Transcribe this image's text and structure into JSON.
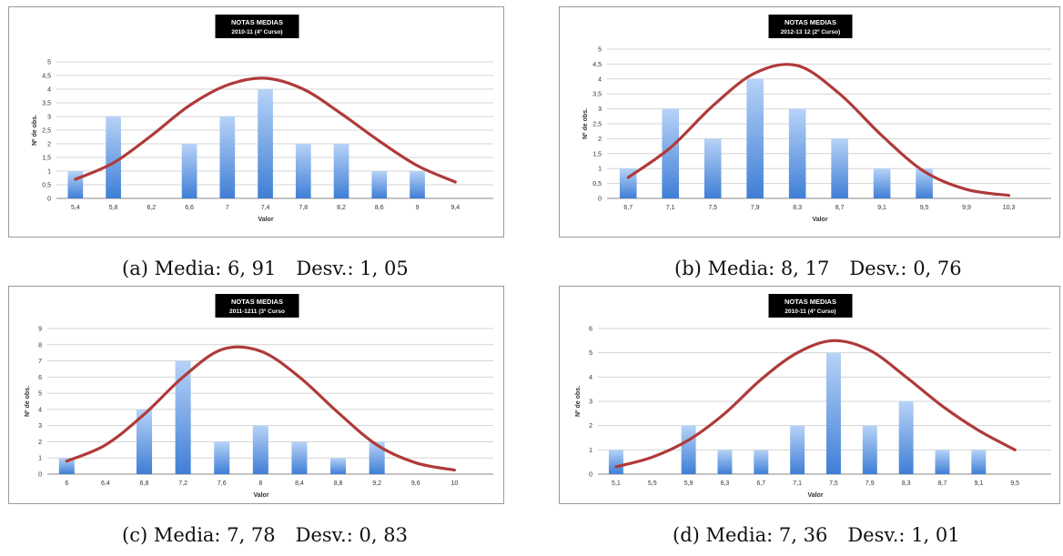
{
  "chart_data": [
    {
      "type": "bar",
      "title": "NOTAS MEDIAS",
      "subtitle": "2010-11 (4º Curso)",
      "xlabel": "Valor",
      "ylabel": "Nº de obs.",
      "ylim": [
        0,
        5
      ],
      "yticks": [
        "0",
        "0,5",
        "1",
        "1,5",
        "2",
        "2,5",
        "3",
        "3,5",
        "4",
        "4,5",
        "5"
      ],
      "categories": [
        "5,4",
        "5,8",
        "6,2",
        "6,6",
        "7",
        "7,4",
        "7,8",
        "8,2",
        "8,6",
        "9",
        "9,4"
      ],
      "values": [
        1,
        3,
        0,
        2,
        3,
        4,
        2,
        2,
        1,
        1,
        0
      ],
      "curve": [
        0.7,
        1.3,
        2.3,
        3.4,
        4.15,
        4.4,
        4.0,
        3.1,
        2.1,
        1.2,
        0.6
      ],
      "grid": true,
      "caption": {
        "label": "(a) Media:",
        "mean": "6, 91",
        "dev_label": "Desv.:",
        "dev": "1, 05"
      }
    },
    {
      "type": "bar",
      "title": "NOTAS MEDIAS",
      "subtitle": "2012-13 12 (2º Curso)",
      "xlabel": "Valor",
      "ylabel": "Nº de obs.",
      "ylim": [
        0,
        5
      ],
      "yticks": [
        "0",
        "0,5",
        "1",
        "1,5",
        "2",
        "2,5",
        "3",
        "3,5",
        "4",
        "4,5",
        "5"
      ],
      "categories": [
        "6,7",
        "7,1",
        "7,5",
        "7,9",
        "8,3",
        "8,7",
        "9,1",
        "9,5",
        "9,9",
        "10,3"
      ],
      "values": [
        1,
        3,
        2,
        4,
        3,
        2,
        1,
        1,
        0,
        0
      ],
      "curve": [
        0.7,
        1.7,
        3.1,
        4.2,
        4.45,
        3.5,
        2.1,
        0.9,
        0.3,
        0.1
      ],
      "grid": true,
      "caption": {
        "label": "(b) Media:",
        "mean": "8, 17",
        "dev_label": "Desv.:",
        "dev": "0, 76"
      }
    },
    {
      "type": "bar",
      "title": "NOTAS MEDIAS",
      "subtitle": "2011-1211 (3º Curso",
      "xlabel": "Valor",
      "ylabel": "Nº de obs.",
      "ylim": [
        0,
        9
      ],
      "yticks": [
        "0",
        "1",
        "2",
        "3",
        "4",
        "5",
        "6",
        "7",
        "8",
        "9"
      ],
      "categories": [
        "6",
        "6,4",
        "6,8",
        "7,2",
        "7,6",
        "8",
        "8,4",
        "8,8",
        "9,2",
        "9,6",
        "10"
      ],
      "values": [
        1,
        0,
        4,
        7,
        2,
        3,
        2,
        1,
        2,
        0,
        0
      ],
      "curve": [
        0.8,
        1.8,
        3.7,
        6.0,
        7.7,
        7.6,
        6.0,
        3.8,
        1.8,
        0.7,
        0.25
      ],
      "grid": true,
      "caption": {
        "label": "(c) Media:",
        "mean": "7, 78",
        "dev_label": "Desv.:",
        "dev": "0, 83"
      }
    },
    {
      "type": "bar",
      "title": "NOTAS MEDIAS",
      "subtitle": "2010-11 (4º Curso)",
      "xlabel": "Valor",
      "ylabel": "Nº de obs.",
      "ylim": [
        0,
        6
      ],
      "yticks": [
        "0",
        "1",
        "2",
        "3",
        "4",
        "5",
        "6"
      ],
      "categories": [
        "5,1",
        "5,5",
        "5,9",
        "6,3",
        "6,7",
        "7,1",
        "7,5",
        "7,9",
        "8,3",
        "8,7",
        "9,1",
        "9,5"
      ],
      "values": [
        1,
        0,
        2,
        1,
        1,
        2,
        5,
        2,
        3,
        1,
        1,
        0
      ],
      "curve": [
        0.3,
        0.7,
        1.4,
        2.5,
        3.9,
        5.0,
        5.5,
        5.1,
        4.0,
        2.8,
        1.8,
        1.0
      ],
      "grid": true,
      "caption": {
        "label": "(d) Media:",
        "mean": "7, 36",
        "dev_label": "Desv.:",
        "dev": "1, 01"
      }
    }
  ],
  "colors": {
    "bar_top": "#b7d3f7",
    "bar_bottom": "#3f7ed6",
    "curve": "#b03a3a",
    "grid": "#d4d4d4",
    "title_bg": "#000000"
  }
}
